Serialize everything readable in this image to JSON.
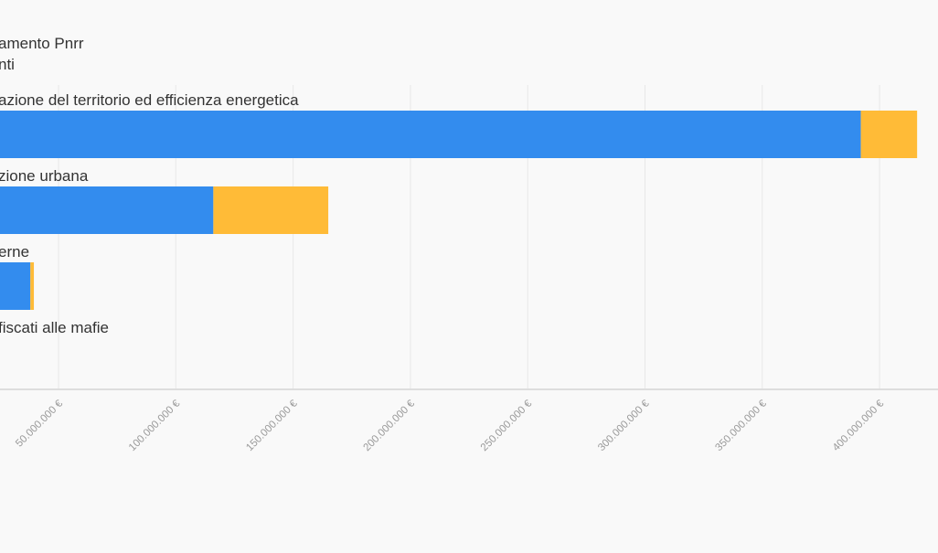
{
  "chart_data": {
    "type": "bar",
    "orientation": "horizontal",
    "stacked": true,
    "legend": {
      "title": "amento Pnrr",
      "subtitle": "nti"
    },
    "categories": [
      "azione del territorio ed efficienza energetica",
      "zione urbana",
      "erne",
      "fiscati alle mafie"
    ],
    "series": [
      {
        "values": [
          392000000,
          116000000,
          38000000,
          0
        ]
      },
      {
        "values": [
          24000000,
          49000000,
          1500000,
          0
        ]
      }
    ],
    "series_colors": [
      "#338cee",
      "#ffbb37"
    ],
    "x_tick_values": [
      50000000,
      100000000,
      150000000,
      200000000,
      250000000,
      300000000,
      350000000,
      400000000
    ],
    "x_tick_labels": [
      "50.000.000 €",
      "100.000.000 €",
      "150.000.000 €",
      "200.000.000 €",
      "250.000.000 €",
      "300.000.000 €",
      "350.000.000 €",
      "400.000.000 €"
    ],
    "xlim": [
      25000000,
      425000000
    ],
    "grid": true,
    "colors": {
      "background": "#f9f9f9",
      "grid": "#e8e8e8",
      "axis": "#dddddd",
      "text": "#333333",
      "tick_text": "#9a9a9a"
    }
  }
}
